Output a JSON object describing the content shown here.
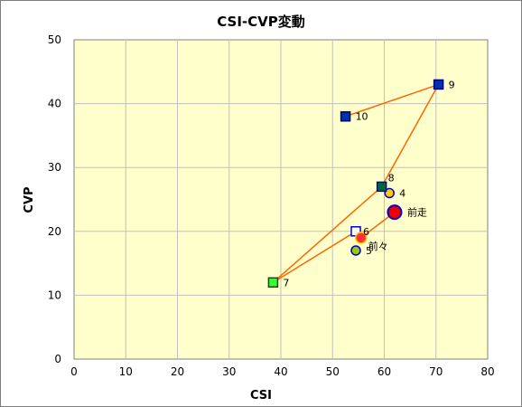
{
  "chart_data": {
    "type": "scatter",
    "title": "CSI-CVP変動",
    "xlabel": "CSI",
    "ylabel": "CVP",
    "xlim": [
      0,
      80
    ],
    "ylim": [
      0,
      50
    ],
    "xticks": [
      "0",
      "10",
      "20",
      "30",
      "40",
      "50",
      "60",
      "70",
      "80"
    ],
    "yticks": [
      "0",
      "10",
      "20",
      "30",
      "40",
      "50"
    ],
    "grid": true,
    "plot_background": "#ffffcc",
    "line_color": "#ff6600",
    "path_order": [
      "前走",
      "前々",
      "6",
      "7",
      "8",
      "9",
      "10"
    ],
    "points": [
      {
        "label": "4",
        "x": 61.0,
        "y": 26.0,
        "shape": "circle",
        "fill": "#ffcc00",
        "stroke": "#0000cc",
        "size": "small"
      },
      {
        "label": "5",
        "x": 54.5,
        "y": 17.0,
        "shape": "circle",
        "fill": "#99cc00",
        "stroke": "#0000cc",
        "size": "small"
      },
      {
        "label": "6",
        "x": 54.5,
        "y": 20.0,
        "shape": "square",
        "fill": "#ffffff",
        "stroke": "#0000cc",
        "size": "small"
      },
      {
        "label": "7",
        "x": 38.5,
        "y": 12.0,
        "shape": "square",
        "fill": "#33ff33",
        "stroke": "#333333",
        "size": "small"
      },
      {
        "label": "8",
        "x": 59.5,
        "y": 27.0,
        "shape": "square",
        "fill": "#006633",
        "stroke": "#0000cc",
        "size": "small"
      },
      {
        "label": "9",
        "x": 70.5,
        "y": 43.0,
        "shape": "square",
        "fill": "#0033aa",
        "stroke": "#000080",
        "size": "small"
      },
      {
        "label": "10",
        "x": 52.5,
        "y": 38.0,
        "shape": "square",
        "fill": "#0033aa",
        "stroke": "#000080",
        "size": "small"
      },
      {
        "label": "前々",
        "x": 55.5,
        "y": 19.0,
        "shape": "circle",
        "fill": "#ff3333",
        "stroke": "#ffcc00",
        "size": "medium"
      },
      {
        "label": "前走",
        "x": 62.0,
        "y": 23.0,
        "shape": "circle",
        "fill": "#ee0000",
        "stroke": "#0000cc",
        "size": "large"
      }
    ]
  }
}
